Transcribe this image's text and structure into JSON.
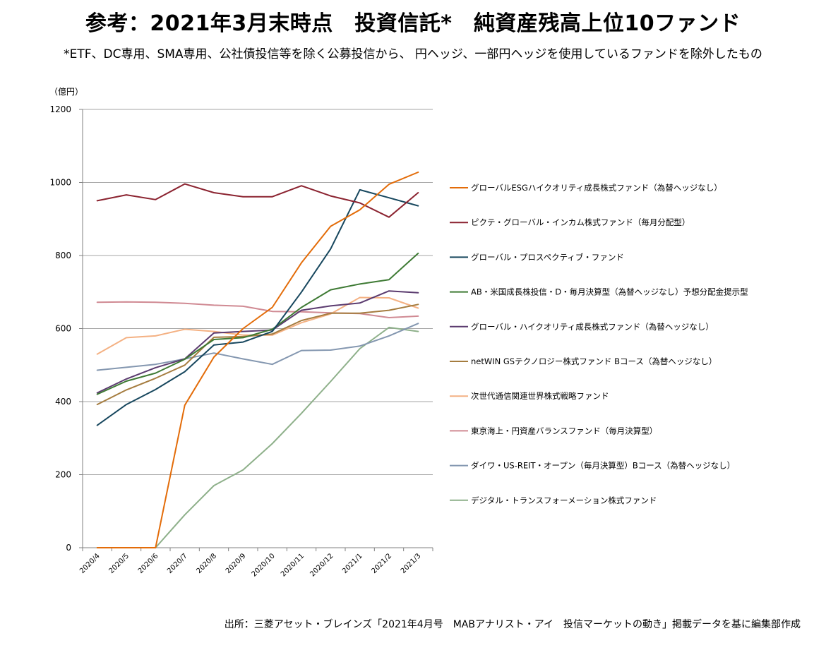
{
  "title": "参考：2021年3月末時点　投資信託*　純資産残高上位10ファンド",
  "subtitle": "*ETF、DC専用、SMA専用、公社債投信等を除く公募投信から、 円ヘッジ、一部円ヘッジを使用しているファンドを除外したもの",
  "source": "出所：三菱アセット・ブレインズ「2021年4月号　MABアナリスト・アイ　投信マーケットの動き」掲載データを基に編集部作成",
  "chart_data": {
    "type": "line",
    "title": "",
    "xlabel": "",
    "ylabel": "",
    "y_unit": "（億円）",
    "ylim": [
      0,
      1200
    ],
    "yticks": [
      0,
      200,
      400,
      600,
      800,
      1000,
      1200
    ],
    "grid": "horizontal",
    "legend": "right",
    "x": [
      "2020/4",
      "2020/5",
      "2020/6",
      "2020/7",
      "2020/8",
      "2020/9",
      "2020/10",
      "2020/11",
      "2020/12",
      "2021/1",
      "2021/2",
      "2021/3"
    ],
    "series": [
      {
        "name": "グローバルESGハイクオリティ成長株式ファンド（為替ヘッジなし）",
        "color": "#E36C09",
        "values": [
          0,
          0,
          0,
          390,
          522,
          600,
          658,
          780,
          880,
          925,
          995,
          1028
        ]
      },
      {
        "name": "ピクテ・グローバル・インカム株式ファンド（毎月分配型）",
        "color": "#8B2330",
        "values": [
          950,
          966,
          953,
          996,
          972,
          961,
          961,
          991,
          963,
          944,
          905,
          972
        ]
      },
      {
        "name": "グローバル・プロスペクティブ・ファンド",
        "color": "#17475E",
        "values": [
          335,
          392,
          433,
          482,
          555,
          563,
          592,
          700,
          818,
          980,
          958,
          936
        ]
      },
      {
        "name": "AB・米国成長株投信・D・毎月決算型（為替ヘッジなし）予想分配金提示型",
        "color": "#3E7A34",
        "values": [
          420,
          456,
          478,
          516,
          570,
          575,
          598,
          658,
          706,
          722,
          734,
          806
        ]
      },
      {
        "name": "グローバル・ハイクオリティ成長株式ファンド（為替ヘッジなし）",
        "color": "#5B3B6F",
        "values": [
          424,
          462,
          493,
          517,
          588,
          592,
          596,
          650,
          662,
          670,
          703,
          698
        ]
      },
      {
        "name": "netWIN GSテクノロジー株式ファンド Bコース（為替ヘッジなし）",
        "color": "#A57C3F",
        "values": [
          392,
          432,
          464,
          500,
          576,
          578,
          585,
          622,
          642,
          642,
          650,
          666
        ]
      },
      {
        "name": "次世代通信関連世界株式戦略ファンド",
        "color": "#F4B183",
        "values": [
          530,
          575,
          580,
          598,
          592,
          582,
          582,
          616,
          640,
          685,
          684,
          656
        ]
      },
      {
        "name": "東京海上・円資産バランスファンド（毎月決算型）",
        "color": "#D08A93",
        "values": [
          672,
          673,
          672,
          669,
          664,
          661,
          647,
          646,
          643,
          641,
          630,
          634
        ]
      },
      {
        "name": "ダイワ・US-REIT・オープン（毎月決算型）Bコース（為替ヘッジなし）",
        "color": "#8497B0",
        "values": [
          486,
          494,
          502,
          517,
          533,
          517,
          502,
          540,
          541,
          552,
          580,
          614
        ]
      },
      {
        "name": "デジタル・トランスフォーメーション株式ファンド",
        "color": "#8EB08A",
        "values": [
          0,
          0,
          0,
          90,
          170,
          213,
          285,
          368,
          455,
          545,
          603,
          592
        ]
      }
    ]
  }
}
